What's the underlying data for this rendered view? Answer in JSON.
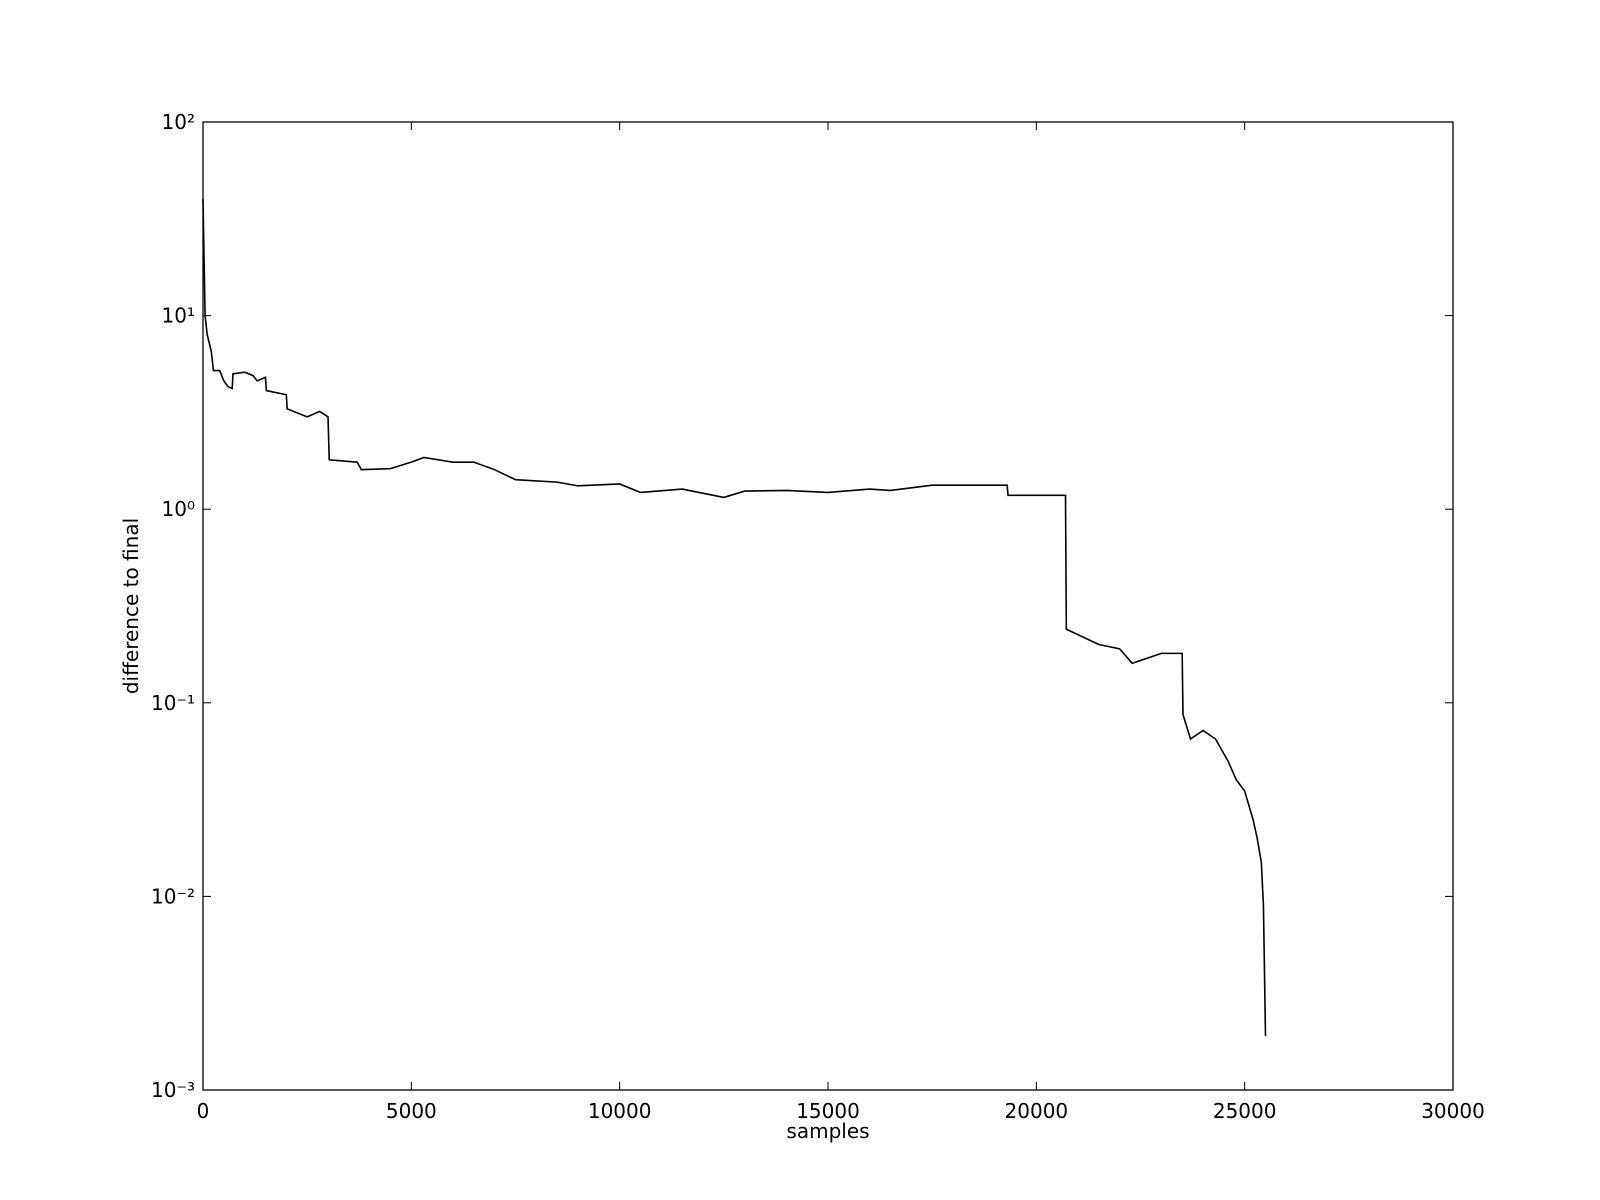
{
  "chart_data": {
    "type": "line",
    "xlabel": "samples",
    "ylabel": "difference to final",
    "x": [
      0,
      50,
      100,
      200,
      250,
      400,
      500,
      600,
      700,
      720,
      1000,
      1200,
      1300,
      1500,
      1520,
      2000,
      2020,
      2500,
      2800,
      3000,
      3030,
      3700,
      3800,
      4500,
      5000,
      5300,
      6000,
      6500,
      7000,
      7500,
      8500,
      9000,
      10000,
      10500,
      11500,
      12500,
      13000,
      14000,
      15000,
      16000,
      16500,
      17500,
      19300,
      19320,
      20500,
      20700,
      20720,
      21500,
      22000,
      22300,
      23000,
      23500,
      23520,
      23700,
      24000,
      24300,
      24600,
      24800,
      25000,
      25200,
      25300,
      25400,
      25450,
      25500
    ],
    "values": [
      40,
      10,
      8,
      6.5,
      5.2,
      5.2,
      4.6,
      4.3,
      4.2,
      5.0,
      5.1,
      4.9,
      4.6,
      4.8,
      4.1,
      3.9,
      3.3,
      3.0,
      3.2,
      3.0,
      1.8,
      1.75,
      1.6,
      1.62,
      1.75,
      1.85,
      1.75,
      1.75,
      1.6,
      1.42,
      1.38,
      1.32,
      1.35,
      1.22,
      1.27,
      1.15,
      1.24,
      1.25,
      1.22,
      1.27,
      1.25,
      1.33,
      1.33,
      1.18,
      1.18,
      1.18,
      0.24,
      0.2,
      0.19,
      0.16,
      0.18,
      0.18,
      0.087,
      0.065,
      0.072,
      0.065,
      0.05,
      0.04,
      0.035,
      0.025,
      0.02,
      0.015,
      0.009,
      0.0019
    ],
    "color": "#000000",
    "xlim": [
      0,
      30000
    ],
    "xticks": [
      0,
      5000,
      10000,
      15000,
      20000,
      25000,
      30000
    ],
    "ylim": [
      0.001,
      100
    ],
    "yscale": "log",
    "yticks": [
      {
        "value": 0.001,
        "label": "10⁻³"
      },
      {
        "value": 0.01,
        "label": "10⁻²"
      },
      {
        "value": 0.1,
        "label": "10⁻¹"
      },
      {
        "value": 1,
        "label": "10⁰"
      },
      {
        "value": 10,
        "label": "10¹"
      },
      {
        "value": 100,
        "label": "10²"
      }
    ],
    "grid": false
  }
}
